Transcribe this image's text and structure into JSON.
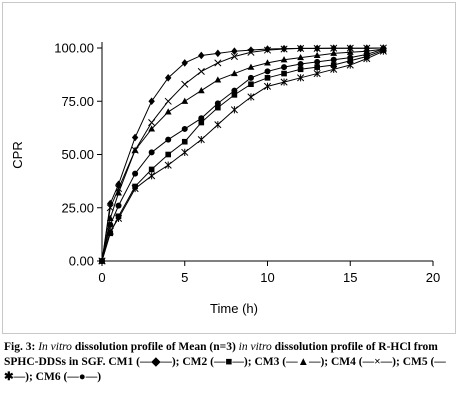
{
  "chart_data": {
    "type": "line",
    "title": "",
    "xlabel": "Time (h)",
    "ylabel": "CPR",
    "xlim": [
      0,
      20
    ],
    "ylim": [
      0,
      100
    ],
    "x_ticks": [
      0,
      5,
      10,
      15,
      20
    ],
    "x_tick_labels": [
      "0",
      "5",
      "10",
      "15",
      "20"
    ],
    "y_ticks": [
      0,
      25,
      50,
      75,
      100
    ],
    "y_tick_labels": [
      "0.00",
      "25.00",
      "50.00",
      "75.00",
      "100.00"
    ],
    "grid": false,
    "legend": "in caption",
    "series": [
      {
        "name": "CM1",
        "marker": "diamond",
        "color": "#000000",
        "x": [
          0,
          0.5,
          1,
          2,
          3,
          4,
          5,
          6,
          7,
          8,
          9,
          10,
          11,
          12,
          13,
          14,
          15,
          16,
          17
        ],
        "y": [
          0,
          27,
          36,
          58,
          75,
          86,
          93,
          96.5,
          97.5,
          98.5,
          99,
          99.5,
          99.7,
          99.8,
          99.8,
          99.9,
          99.9,
          99.9,
          100
        ]
      },
      {
        "name": "CM2",
        "marker": "square",
        "color": "#000000",
        "x": [
          0,
          0.5,
          1,
          2,
          3,
          4,
          5,
          6,
          7,
          8,
          9,
          10,
          11,
          12,
          13,
          14,
          15,
          16,
          17
        ],
        "y": [
          0,
          13,
          21,
          35,
          43,
          50,
          56,
          65,
          72,
          78,
          83,
          86,
          88,
          90,
          91,
          92,
          94,
          96,
          99
        ]
      },
      {
        "name": "CM3",
        "marker": "triangle",
        "color": "#000000",
        "x": [
          0,
          0.5,
          1,
          2,
          3,
          4,
          5,
          6,
          7,
          8,
          9,
          10,
          11,
          12,
          13,
          14,
          15,
          16,
          17
        ],
        "y": [
          0,
          20,
          32,
          52,
          62,
          70,
          75,
          80,
          85,
          88,
          91,
          93,
          94.5,
          95.5,
          96.5,
          97.5,
          98,
          98.5,
          99.5
        ]
      },
      {
        "name": "CM4",
        "marker": "x",
        "color": "#000000",
        "x": [
          0,
          0.5,
          1,
          2,
          3,
          4,
          5,
          6,
          7,
          8,
          9,
          10,
          11,
          12,
          13,
          14,
          15,
          16,
          17
        ],
        "y": [
          0,
          25,
          34,
          52,
          65,
          75,
          83,
          89,
          93,
          96,
          98,
          99,
          99.5,
          99.8,
          99.8,
          99.9,
          99.9,
          99.9,
          100
        ]
      },
      {
        "name": "CM5",
        "marker": "star",
        "color": "#000000",
        "x": [
          0,
          0.5,
          1,
          2,
          3,
          4,
          5,
          6,
          7,
          8,
          9,
          10,
          11,
          12,
          13,
          14,
          15,
          16,
          17
        ],
        "y": [
          0,
          14,
          20,
          34,
          40,
          45,
          51,
          57,
          64,
          71,
          77,
          82,
          84,
          86,
          88,
          90,
          92,
          95,
          98.5
        ]
      },
      {
        "name": "CM6",
        "marker": "circle",
        "color": "#000000",
        "x": [
          0,
          0.5,
          1,
          2,
          3,
          4,
          5,
          6,
          7,
          8,
          9,
          10,
          11,
          12,
          13,
          14,
          15,
          16,
          17
        ],
        "y": [
          0,
          17,
          26,
          41,
          51,
          57,
          62,
          67,
          74,
          80,
          86,
          89,
          91,
          92.5,
          93.5,
          94.5,
          95.5,
          97,
          99.5
        ]
      }
    ]
  },
  "caption": {
    "fig_label": "Fig. 3:",
    "in_vitro_1": "In vitro",
    "text_1": " dissolution profile of Mean (n=3) ",
    "in_vitro_2": "in vitro",
    "text_2": " dissolution profile of R-HCl from SPHC-DDSs in SGF. CM1 (—◆—); CM2 (—■—); CM3 (—▲—); CM4 (—×—); CM5 (—✱—); CM6 (—●—)"
  }
}
